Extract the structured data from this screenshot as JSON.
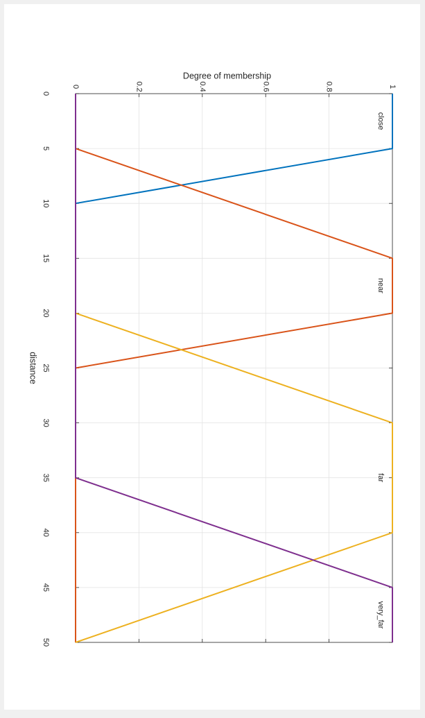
{
  "window": {
    "background_color": "#f0f0f0",
    "canvas_color": "#ffffff"
  },
  "chart_data": {
    "type": "line",
    "orientation": "rotated-90-clockwise",
    "title": "",
    "xlabel": "distance",
    "ylabel": "Degree of membership",
    "xlim": [
      0,
      50
    ],
    "ylim": [
      0,
      1
    ],
    "xticks": [
      0,
      5,
      10,
      15,
      20,
      25,
      30,
      35,
      40,
      45,
      50
    ],
    "yticks": [
      0,
      0.2,
      0.4,
      0.6,
      0.8,
      1
    ],
    "grid": true,
    "series": [
      {
        "name": "close",
        "color": "#0072BD",
        "x": [
          0,
          5,
          10,
          50
        ],
        "y": [
          1,
          1,
          0,
          0
        ],
        "label_at_x": 2.5
      },
      {
        "name": "near",
        "color": "#D95319",
        "x": [
          0,
          5,
          15,
          20,
          25,
          50
        ],
        "y": [
          0,
          0,
          1,
          1,
          0,
          0
        ],
        "label_at_x": 17.5
      },
      {
        "name": "far",
        "color": "#EDB120",
        "x": [
          0,
          20,
          30,
          40,
          50
        ],
        "y": [
          0,
          0,
          1,
          1,
          0
        ],
        "label_at_x": 35
      },
      {
        "name": "very_far",
        "color": "#7E2F8E",
        "x": [
          0,
          35,
          45,
          50
        ],
        "y": [
          0,
          0,
          1,
          1
        ],
        "label_at_x": 47.5
      }
    ]
  }
}
